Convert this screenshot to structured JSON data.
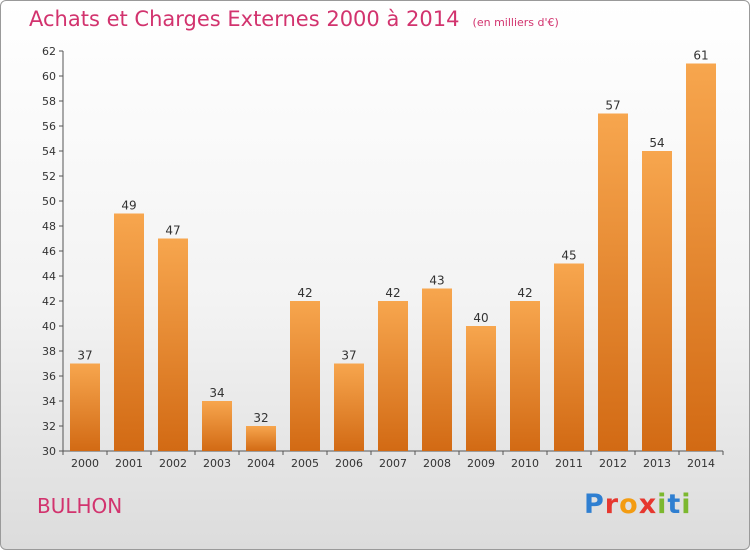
{
  "header": {
    "title": "Achats et Charges Externes 2000 à 2014",
    "subtitle": "(en milliers d'€)"
  },
  "footer": {
    "commune": "BULHON",
    "logo_text": "Proxiti"
  },
  "colors": {
    "bar_top": "#f7a64e",
    "bar_bottom": "#d26a14",
    "title": "#d2336e"
  },
  "chart_data": {
    "type": "bar",
    "title": "Achats et Charges Externes 2000 à 2014",
    "subtitle": "(en milliers d'€)",
    "categories": [
      "2000",
      "2001",
      "2002",
      "2003",
      "2004",
      "2005",
      "2006",
      "2007",
      "2008",
      "2009",
      "2010",
      "2011",
      "2012",
      "2013",
      "2014"
    ],
    "values": [
      37,
      49,
      47,
      34,
      32,
      42,
      37,
      42,
      43,
      40,
      42,
      45,
      57,
      54,
      61
    ],
    "ylim": [
      30,
      62
    ],
    "yticks": [
      30,
      32,
      34,
      36,
      38,
      40,
      42,
      44,
      46,
      48,
      50,
      52,
      54,
      56,
      58,
      60,
      62
    ],
    "grid": false,
    "data_labels": true
  }
}
